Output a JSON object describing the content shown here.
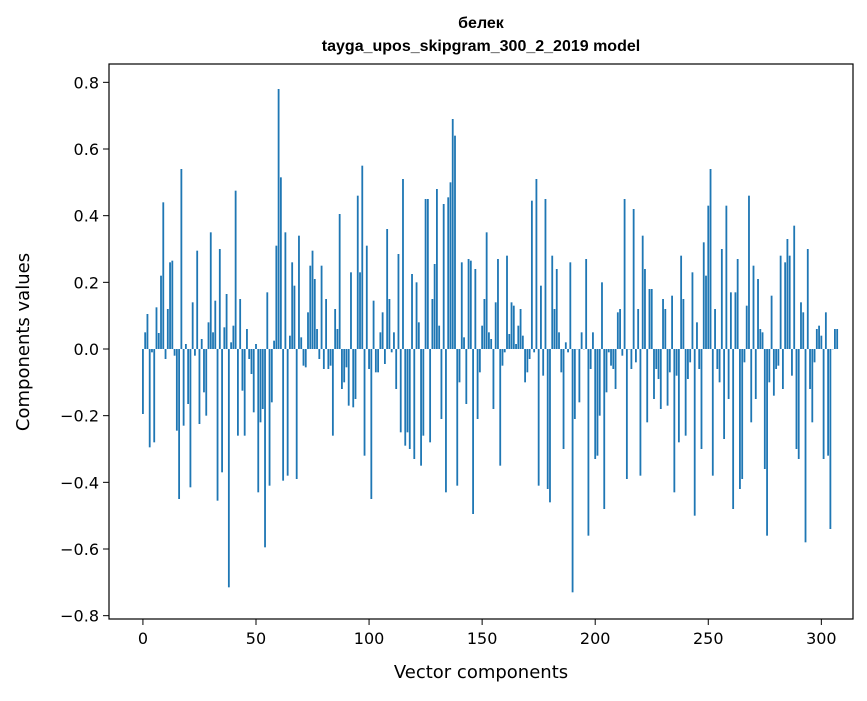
{
  "chart_data": {
    "type": "bar",
    "title": "белек",
    "subtitle": "tayga_upos_skipgram_300_2_2019 model",
    "xlabel": "Vector components",
    "ylabel": "Components values",
    "xlim": [
      -15,
      314
    ],
    "ylim": [
      -0.81,
      0.855
    ],
    "x_ticks": [
      0,
      50,
      100,
      150,
      200,
      250,
      300
    ],
    "y_ticks": [
      -0.8,
      -0.6,
      -0.4,
      -0.2,
      0.0,
      0.2,
      0.4,
      0.6,
      0.8
    ],
    "x_tick_labels": [
      "0",
      "50",
      "100",
      "150",
      "200",
      "250",
      "300"
    ],
    "y_tick_labels": [
      "−0.8",
      "−0.6",
      "−0.4",
      "−0.2",
      "0.0",
      "0.2",
      "0.4",
      "0.6",
      "0.8"
    ],
    "bar_color": "#1f77b4",
    "grid": false,
    "values": [
      -0.195,
      0.05,
      0.105,
      -0.295,
      -0.01,
      -0.28,
      0.125,
      0.048,
      0.22,
      0.44,
      -0.03,
      0.12,
      0.26,
      0.265,
      -0.02,
      -0.245,
      -0.45,
      0.54,
      -0.23,
      0.015,
      -0.165,
      -0.415,
      0.14,
      -0.02,
      0.295,
      -0.225,
      0.03,
      -0.13,
      -0.2,
      0.08,
      0.35,
      0.05,
      0.145,
      -0.455,
      0.3,
      -0.37,
      0.065,
      0.165,
      -0.715,
      0.02,
      0.07,
      0.475,
      -0.26,
      0.15,
      -0.125,
      -0.26,
      0.06,
      -0.03,
      -0.075,
      -0.19,
      0.015,
      -0.43,
      -0.22,
      -0.18,
      -0.595,
      0.17,
      -0.41,
      -0.16,
      0.025,
      0.31,
      0.78,
      0.515,
      -0.395,
      0.35,
      -0.38,
      0.04,
      0.26,
      0.19,
      -0.39,
      0.34,
      0.035,
      -0.05,
      -0.055,
      0.11,
      0.25,
      0.295,
      0.21,
      0.06,
      -0.03,
      0.25,
      -0.06,
      0.15,
      -0.06,
      -0.05,
      -0.26,
      0.12,
      0.06,
      0.405,
      -0.12,
      -0.1,
      -0.055,
      -0.17,
      0.23,
      -0.175,
      -0.15,
      0.46,
      0.23,
      0.55,
      -0.32,
      0.31,
      -0.06,
      -0.45,
      0.145,
      -0.07,
      -0.07,
      0.05,
      0.11,
      -0.045,
      0.36,
      0.15,
      -0.01,
      0.05,
      -0.12,
      0.285,
      -0.25,
      0.51,
      -0.29,
      -0.25,
      -0.3,
      0.225,
      -0.33,
      0.2,
      0.08,
      -0.35,
      -0.26,
      0.45,
      0.45,
      -0.28,
      0.15,
      0.255,
      0.48,
      0.07,
      -0.21,
      0.435,
      -0.43,
      0.455,
      0.5,
      0.69,
      0.64,
      -0.41,
      -0.1,
      0.26,
      0.035,
      -0.165,
      0.27,
      0.265,
      -0.495,
      0.24,
      -0.21,
      -0.07,
      0.07,
      0.15,
      0.35,
      0.05,
      0.03,
      -0.18,
      0.14,
      0.27,
      -0.35,
      -0.05,
      -0.01,
      0.28,
      0.045,
      0.14,
      0.13,
      0.015,
      0.07,
      0.12,
      0.04,
      -0.1,
      -0.07,
      -0.03,
      0.445,
      -0.01,
      0.51,
      -0.41,
      0.19,
      -0.08,
      0.45,
      -0.42,
      -0.46,
      0.28,
      0.12,
      0.24,
      0.05,
      -0.07,
      -0.3,
      0.02,
      -0.01,
      0.26,
      -0.73,
      -0.21,
      0.0,
      -0.16,
      0.05,
      0.0,
      0.27,
      -0.56,
      -0.06,
      0.05,
      -0.33,
      -0.32,
      -0.2,
      0.2,
      -0.48,
      -0.13,
      -0.01,
      -0.05,
      -0.06,
      -0.12,
      0.11,
      0.12,
      -0.02,
      0.45,
      -0.39,
      0.0,
      -0.06,
      0.42,
      -0.04,
      0.12,
      -0.38,
      0.34,
      0.24,
      -0.22,
      0.18,
      0.18,
      -0.15,
      -0.06,
      -0.09,
      -0.18,
      0.15,
      0.12,
      -0.17,
      -0.07,
      0.16,
      -0.43,
      -0.08,
      -0.28,
      0.28,
      0.15,
      -0.26,
      -0.09,
      -0.04,
      0.23,
      -0.5,
      0.08,
      -0.06,
      -0.3,
      0.32,
      0.22,
      0.43,
      0.54,
      -0.38,
      0.12,
      -0.06,
      -0.1,
      0.3,
      -0.27,
      0.43,
      -0.15,
      0.17,
      -0.48,
      0.17,
      0.27,
      -0.42,
      -0.39,
      -0.04,
      0.13,
      0.46,
      -0.22,
      0.25,
      -0.15,
      0.21,
      0.06,
      0.05,
      -0.36,
      -0.56,
      -0.1,
      0.16,
      -0.14,
      -0.06,
      -0.05,
      0.28,
      -0.12,
      0.26,
      0.33,
      0.28,
      -0.08,
      0.37,
      -0.3,
      -0.33,
      0.14,
      0.11,
      -0.58,
      0.3,
      -0.12,
      -0.22,
      -0.04,
      0.06,
      0.07,
      0.04,
      -0.33,
      0.11,
      -0.32,
      -0.54,
      0.0,
      0.06,
      0.06
    ]
  }
}
